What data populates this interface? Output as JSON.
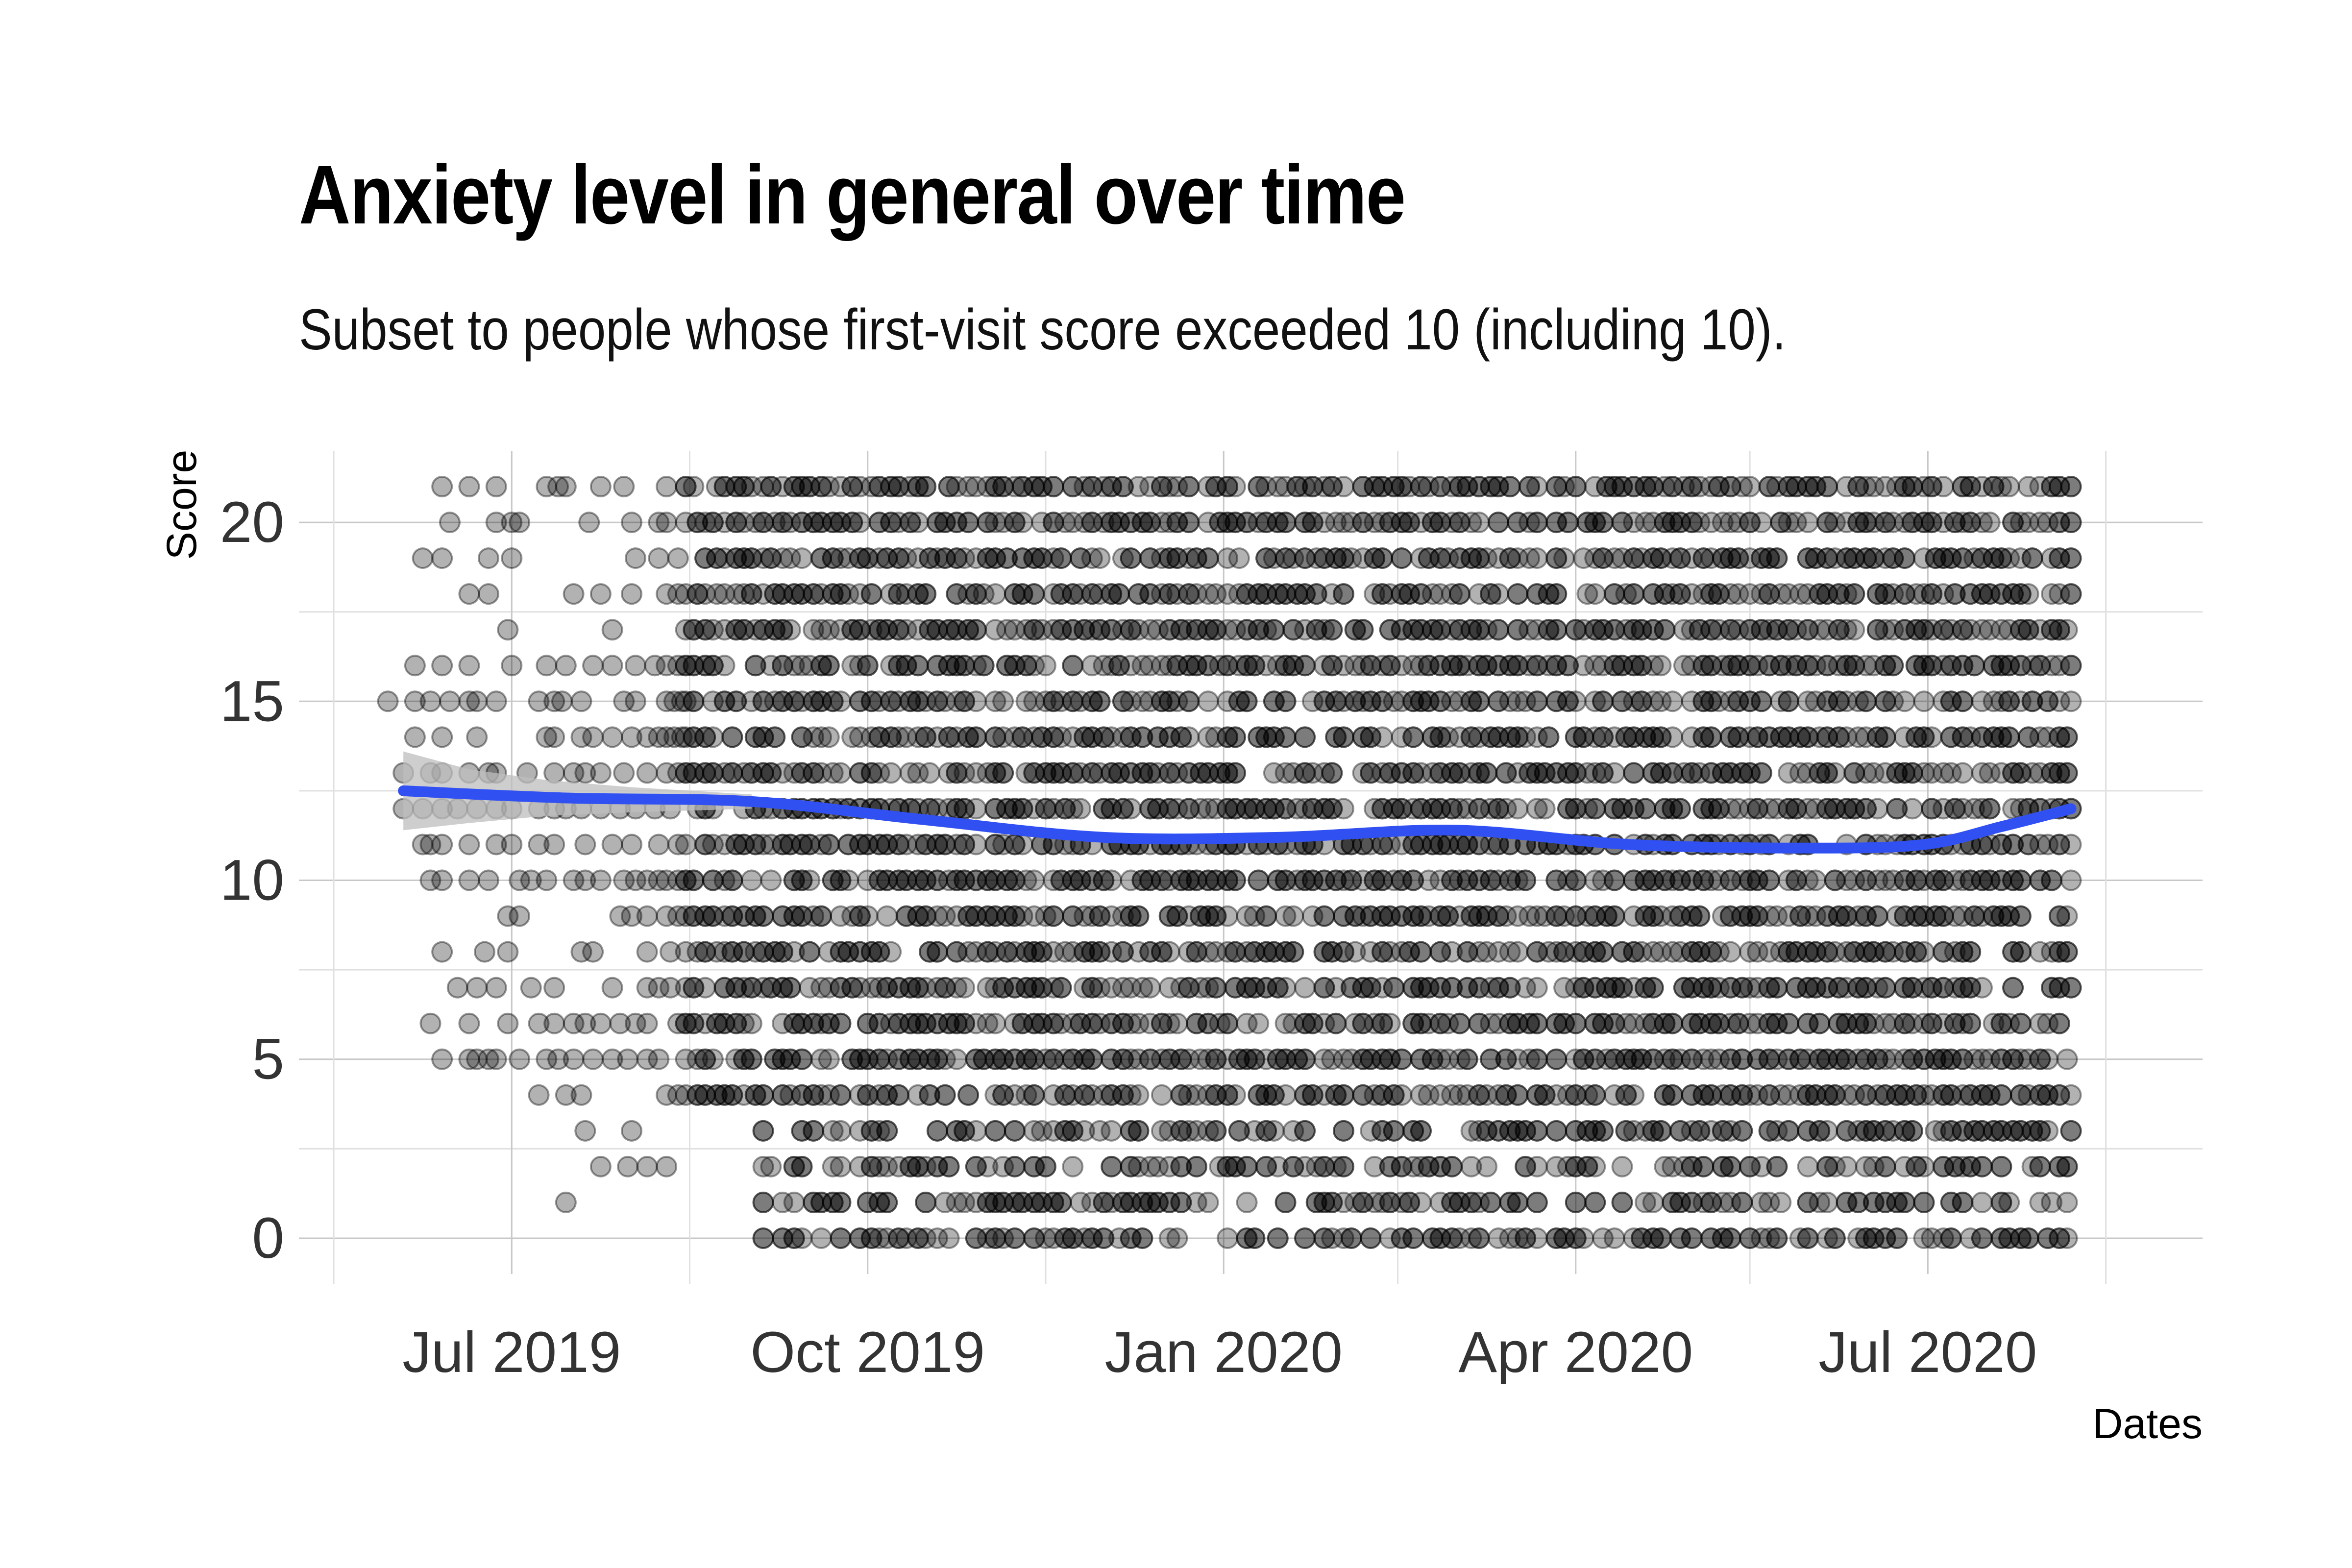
{
  "chart_data": {
    "type": "scatter",
    "title": "Anxiety level in general over time",
    "subtitle": "Subset to people whose first-visit score exceeded 10 (including 10).",
    "xlabel": "Dates",
    "ylabel": "Score",
    "x_axis_type": "date",
    "xlim": [
      "2019-05-07",
      "2020-09-10"
    ],
    "ylim": [
      -1,
      22
    ],
    "x_ticks": [
      {
        "date": "2019-07-01",
        "label": "Jul 2019"
      },
      {
        "date": "2019-10-01",
        "label": "Oct 2019"
      },
      {
        "date": "2020-01-01",
        "label": "Jan 2020"
      },
      {
        "date": "2020-04-01",
        "label": "Apr 2020"
      },
      {
        "date": "2020-07-01",
        "label": "Jul 2020"
      }
    ],
    "y_ticks": [
      0,
      5,
      10,
      15,
      20
    ],
    "grid": true,
    "point_color": "#000000",
    "point_opacity": 0.3,
    "trend_color": "#3150f2",
    "band_color": "#bdbdbd",
    "scores": [
      0,
      1,
      2,
      3,
      4,
      5,
      6,
      7,
      8,
      9,
      10,
      11,
      12,
      13,
      14,
      15,
      16,
      17,
      18,
      19,
      20,
      21
    ],
    "dense_period": {
      "start": "2019-08-15",
      "end": "2020-08-07"
    },
    "sparse_period": {
      "start": "2019-06-03",
      "end": "2019-08-15"
    },
    "sparse_points": [
      [
        "2019-06-13",
        21
      ],
      [
        "2019-06-20",
        21
      ],
      [
        "2019-06-27",
        21
      ],
      [
        "2019-07-10",
        21
      ],
      [
        "2019-07-13",
        21
      ],
      [
        "2019-07-15",
        21
      ],
      [
        "2019-07-24",
        21
      ],
      [
        "2019-07-30",
        21
      ],
      [
        "2019-08-10",
        21
      ],
      [
        "2019-06-15",
        20
      ],
      [
        "2019-06-27",
        20
      ],
      [
        "2019-07-01",
        20
      ],
      [
        "2019-07-03",
        20
      ],
      [
        "2019-07-21",
        20
      ],
      [
        "2019-08-01",
        20
      ],
      [
        "2019-08-08",
        20
      ],
      [
        "2019-08-10",
        20
      ],
      [
        "2019-06-08",
        19
      ],
      [
        "2019-06-13",
        19
      ],
      [
        "2019-06-25",
        19
      ],
      [
        "2019-07-01",
        19
      ],
      [
        "2019-08-02",
        19
      ],
      [
        "2019-08-08",
        19
      ],
      [
        "2019-08-13",
        19
      ],
      [
        "2019-06-20",
        18
      ],
      [
        "2019-06-25",
        18
      ],
      [
        "2019-07-17",
        18
      ],
      [
        "2019-07-24",
        18
      ],
      [
        "2019-08-01",
        18
      ],
      [
        "2019-08-10",
        18
      ],
      [
        "2019-08-13",
        18
      ],
      [
        "2019-06-30",
        17
      ],
      [
        "2019-07-27",
        17
      ],
      [
        "2019-06-06",
        16
      ],
      [
        "2019-06-13",
        16
      ],
      [
        "2019-06-20",
        16
      ],
      [
        "2019-07-01",
        16
      ],
      [
        "2019-07-10",
        16
      ],
      [
        "2019-07-15",
        16
      ],
      [
        "2019-07-22",
        16
      ],
      [
        "2019-07-27",
        16
      ],
      [
        "2019-08-02",
        16
      ],
      [
        "2019-08-07",
        16
      ],
      [
        "2019-08-10",
        16
      ],
      [
        "2019-08-13",
        16
      ],
      [
        "2019-05-30",
        15
      ],
      [
        "2019-06-06",
        15
      ],
      [
        "2019-06-10",
        15
      ],
      [
        "2019-06-15",
        15
      ],
      [
        "2019-06-20",
        15
      ],
      [
        "2019-06-22",
        15
      ],
      [
        "2019-06-27",
        15
      ],
      [
        "2019-07-08",
        15
      ],
      [
        "2019-07-12",
        15
      ],
      [
        "2019-07-14",
        15
      ],
      [
        "2019-07-19",
        15
      ],
      [
        "2019-07-30",
        15
      ],
      [
        "2019-08-02",
        15
      ],
      [
        "2019-08-10",
        15
      ],
      [
        "2019-08-12",
        15
      ],
      [
        "2019-08-14",
        15
      ],
      [
        "2019-06-06",
        14
      ],
      [
        "2019-06-13",
        14
      ],
      [
        "2019-06-22",
        14
      ],
      [
        "2019-07-10",
        14
      ],
      [
        "2019-07-12",
        14
      ],
      [
        "2019-07-19",
        14
      ],
      [
        "2019-07-22",
        14
      ],
      [
        "2019-07-27",
        14
      ],
      [
        "2019-08-01",
        14
      ],
      [
        "2019-08-05",
        14
      ],
      [
        "2019-08-08",
        14
      ],
      [
        "2019-08-10",
        14
      ],
      [
        "2019-08-12",
        14
      ],
      [
        "2019-08-14",
        14
      ],
      [
        "2019-06-03",
        13
      ],
      [
        "2019-06-10",
        13
      ],
      [
        "2019-06-13",
        13
      ],
      [
        "2019-06-20",
        13
      ],
      [
        "2019-06-25",
        13
      ],
      [
        "2019-06-27",
        13
      ],
      [
        "2019-07-05",
        13
      ],
      [
        "2019-07-12",
        13
      ],
      [
        "2019-07-17",
        13
      ],
      [
        "2019-07-20",
        13
      ],
      [
        "2019-07-24",
        13
      ],
      [
        "2019-07-30",
        13
      ],
      [
        "2019-08-05",
        13
      ],
      [
        "2019-08-10",
        13
      ],
      [
        "2019-08-13",
        13
      ],
      [
        "2019-06-03",
        12
      ],
      [
        "2019-06-08",
        12
      ],
      [
        "2019-06-13",
        12
      ],
      [
        "2019-06-17",
        12
      ],
      [
        "2019-06-22",
        12
      ],
      [
        "2019-06-27",
        12
      ],
      [
        "2019-07-01",
        12
      ],
      [
        "2019-07-08",
        12
      ],
      [
        "2019-07-12",
        12
      ],
      [
        "2019-07-15",
        12
      ],
      [
        "2019-07-19",
        12
      ],
      [
        "2019-07-24",
        12
      ],
      [
        "2019-07-29",
        12
      ],
      [
        "2019-08-02",
        12
      ],
      [
        "2019-08-07",
        12
      ],
      [
        "2019-08-11",
        12
      ],
      [
        "2019-06-08",
        11
      ],
      [
        "2019-06-10",
        11
      ],
      [
        "2019-06-13",
        11
      ],
      [
        "2019-06-20",
        11
      ],
      [
        "2019-06-27",
        11
      ],
      [
        "2019-07-01",
        11
      ],
      [
        "2019-07-08",
        11
      ],
      [
        "2019-07-12",
        11
      ],
      [
        "2019-07-20",
        11
      ],
      [
        "2019-07-27",
        11
      ],
      [
        "2019-08-01",
        11
      ],
      [
        "2019-08-08",
        11
      ],
      [
        "2019-08-13",
        11
      ],
      [
        "2019-06-10",
        10
      ],
      [
        "2019-06-13",
        10
      ],
      [
        "2019-06-20",
        10
      ],
      [
        "2019-06-25",
        10
      ],
      [
        "2019-07-03",
        10
      ],
      [
        "2019-07-06",
        10
      ],
      [
        "2019-07-10",
        10
      ],
      [
        "2019-07-17",
        10
      ],
      [
        "2019-07-20",
        10
      ],
      [
        "2019-07-24",
        10
      ],
      [
        "2019-07-30",
        10
      ],
      [
        "2019-08-02",
        10
      ],
      [
        "2019-08-05",
        10
      ],
      [
        "2019-08-08",
        10
      ],
      [
        "2019-08-10",
        10
      ],
      [
        "2019-08-13",
        10
      ],
      [
        "2019-06-30",
        9
      ],
      [
        "2019-07-03",
        9
      ],
      [
        "2019-07-29",
        9
      ],
      [
        "2019-08-01",
        9
      ],
      [
        "2019-08-05",
        9
      ],
      [
        "2019-08-10",
        9
      ],
      [
        "2019-08-13",
        9
      ],
      [
        "2019-06-13",
        8
      ],
      [
        "2019-06-24",
        8
      ],
      [
        "2019-06-30",
        8
      ],
      [
        "2019-07-19",
        8
      ],
      [
        "2019-07-22",
        8
      ],
      [
        "2019-08-05",
        8
      ],
      [
        "2019-08-11",
        8
      ],
      [
        "2019-06-17",
        7
      ],
      [
        "2019-06-22",
        7
      ],
      [
        "2019-06-27",
        7
      ],
      [
        "2019-07-06",
        7
      ],
      [
        "2019-07-12",
        7
      ],
      [
        "2019-07-27",
        7
      ],
      [
        "2019-08-05",
        7
      ],
      [
        "2019-08-08",
        7
      ],
      [
        "2019-08-11",
        7
      ],
      [
        "2019-06-10",
        6
      ],
      [
        "2019-06-20",
        6
      ],
      [
        "2019-06-30",
        6
      ],
      [
        "2019-07-08",
        6
      ],
      [
        "2019-07-12",
        6
      ],
      [
        "2019-07-17",
        6
      ],
      [
        "2019-07-20",
        6
      ],
      [
        "2019-07-24",
        6
      ],
      [
        "2019-07-29",
        6
      ],
      [
        "2019-08-02",
        6
      ],
      [
        "2019-08-05",
        6
      ],
      [
        "2019-08-13",
        6
      ],
      [
        "2019-06-13",
        5
      ],
      [
        "2019-06-20",
        5
      ],
      [
        "2019-06-22",
        5
      ],
      [
        "2019-06-25",
        5
      ],
      [
        "2019-06-27",
        5
      ],
      [
        "2019-07-03",
        5
      ],
      [
        "2019-07-10",
        5
      ],
      [
        "2019-07-13",
        5
      ],
      [
        "2019-07-17",
        5
      ],
      [
        "2019-07-22",
        5
      ],
      [
        "2019-07-27",
        5
      ],
      [
        "2019-07-31",
        5
      ],
      [
        "2019-08-05",
        5
      ],
      [
        "2019-08-08",
        5
      ],
      [
        "2019-07-08",
        4
      ],
      [
        "2019-07-15",
        4
      ],
      [
        "2019-07-19",
        4
      ],
      [
        "2019-08-10",
        4
      ],
      [
        "2019-08-13",
        4
      ],
      [
        "2019-07-20",
        3
      ],
      [
        "2019-08-01",
        3
      ],
      [
        "2019-07-24",
        2
      ],
      [
        "2019-07-31",
        2
      ],
      [
        "2019-08-05",
        2
      ],
      [
        "2019-08-10",
        2
      ],
      [
        "2019-07-15",
        1
      ]
    ],
    "trend": {
      "x": [
        "2019-06-03",
        "2019-07-15",
        "2019-09-01",
        "2019-10-15",
        "2019-12-01",
        "2020-01-15",
        "2020-03-01",
        "2020-04-15",
        "2020-06-01",
        "2020-06-30",
        "2020-07-20",
        "2020-08-07"
      ],
      "y": [
        12.5,
        12.3,
        12.2,
        11.7,
        11.2,
        11.2,
        11.4,
        11.0,
        10.9,
        11.0,
        11.5,
        12.0
      ]
    },
    "confidence_band": {
      "x": [
        "2019-06-03",
        "2019-06-20",
        "2019-07-10",
        "2019-08-01",
        "2019-09-01"
      ],
      "upper": [
        13.6,
        13.1,
        12.8,
        12.6,
        12.4
      ],
      "lower": [
        11.4,
        11.6,
        11.8,
        11.9,
        12.0
      ]
    }
  }
}
